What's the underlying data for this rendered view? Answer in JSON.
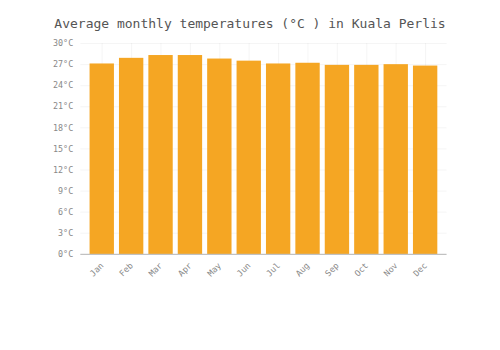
{
  "chart_data": {
    "type": "bar",
    "title": "Average monthly temperatures (°C ) in Kuala Perlis",
    "categories": [
      "Jan",
      "Feb",
      "Mar",
      "Apr",
      "May",
      "Jun",
      "Jul",
      "Aug",
      "Sep",
      "Oct",
      "Nov",
      "Dec"
    ],
    "values": [
      27.1,
      27.9,
      28.3,
      28.3,
      27.8,
      27.5,
      27.1,
      27.2,
      26.9,
      26.9,
      27.0,
      26.8
    ],
    "color": "#F5A623",
    "ylim": [
      0,
      30
    ],
    "yticks": [
      {
        "value": 0,
        "label": "0°C"
      },
      {
        "value": 3,
        "label": "3°C"
      },
      {
        "value": 6,
        "label": "6°C"
      },
      {
        "value": 9,
        "label": "9°C"
      },
      {
        "value": 12,
        "label": "12°C"
      },
      {
        "value": 15,
        "label": "15°C"
      },
      {
        "value": 18,
        "label": "18°C"
      },
      {
        "value": 21,
        "label": "21°C"
      },
      {
        "value": 24,
        "label": "24°C"
      },
      {
        "value": 27,
        "label": "27°C"
      },
      {
        "value": 30,
        "label": "30°C"
      }
    ],
    "grid": true
  }
}
